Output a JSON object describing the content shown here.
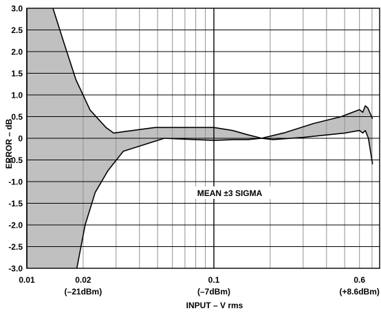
{
  "chart_data": {
    "type": "area",
    "title": "",
    "xlabel": "INPUT – V rms",
    "ylabel": "ERROR – dB",
    "x_scale": "log",
    "xlim": [
      0.01,
      0.8
    ],
    "ylim": [
      -3.0,
      3.0
    ],
    "grid": true,
    "x_ticks": [
      {
        "value": 0.01,
        "label": "0.01",
        "sub": ""
      },
      {
        "value": 0.02,
        "label": "0.02",
        "sub": "(–21dBm)"
      },
      {
        "value": 0.1,
        "label": "0.1",
        "sub": "(–7dBm)"
      },
      {
        "value": 0.6,
        "label": "0.6",
        "sub": "(+8.6dBm)"
      }
    ],
    "y_ticks": [
      "3.0",
      "2.5",
      "2.0",
      "1.5",
      "1.0",
      "0.5",
      "0",
      "-0.5",
      "-1.0",
      "-1.5",
      "-2.0",
      "-2.5",
      "-3.0"
    ],
    "annotation": "MEAN ±3 SIGMA",
    "series": [
      {
        "points": [
          [
            0.0138,
            3.0
          ],
          [
            0.0158,
            2.2
          ],
          [
            0.0183,
            1.35
          ],
          [
            0.0218,
            0.65
          ],
          [
            0.0265,
            0.25
          ],
          [
            0.0291,
            0.12
          ],
          [
            0.0326,
            0.15
          ],
          [
            0.0485,
            0.25
          ],
          [
            0.1,
            0.25
          ],
          [
            0.126,
            0.18
          ],
          [
            0.149,
            0.09
          ],
          [
            0.18,
            0.0
          ],
          [
            0.24,
            0.13
          ],
          [
            0.34,
            0.34
          ],
          [
            0.48,
            0.5
          ],
          [
            0.6,
            0.66
          ],
          [
            0.625,
            0.6
          ],
          [
            0.645,
            0.75
          ],
          [
            0.665,
            0.7
          ],
          [
            0.705,
            0.45
          ]
        ]
      },
      {
        "points": [
          [
            0.0185,
            -3.0
          ],
          [
            0.0205,
            -2.0
          ],
          [
            0.0232,
            -1.25
          ],
          [
            0.0271,
            -0.75
          ],
          [
            0.0328,
            -0.3
          ],
          [
            0.0543,
            0.0
          ],
          [
            0.1,
            -0.05
          ],
          [
            0.128,
            -0.03
          ],
          [
            0.152,
            -0.03
          ],
          [
            0.18,
            0.0
          ],
          [
            0.207,
            -0.03
          ],
          [
            0.3,
            0.02
          ],
          [
            0.5,
            0.12
          ],
          [
            0.6,
            0.18
          ],
          [
            0.625,
            0.12
          ],
          [
            0.645,
            0.18
          ],
          [
            0.67,
            0.0
          ],
          [
            0.705,
            -0.6
          ]
        ]
      },
      {
        "points": [
          [
            0.01,
            3.0
          ],
          [
            0.01,
            -3.0
          ]
        ]
      }
    ]
  }
}
